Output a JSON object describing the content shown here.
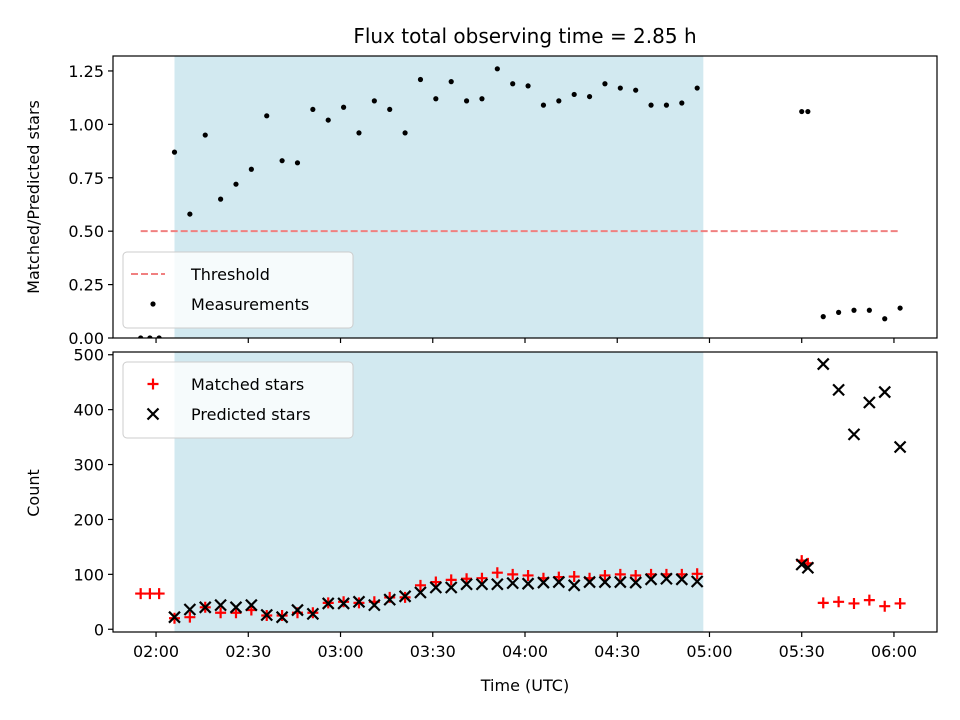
{
  "chart_data": [
    {
      "type": "scatter",
      "title": "Flux total observing time = 2.85 h",
      "xlabel": "",
      "ylabel": "Matched/Predicted stars",
      "x_tick_labels": [
        "02:00",
        "02:30",
        "03:00",
        "03:30",
        "04:00",
        "04:30",
        "05:00",
        "05:30",
        "06:00"
      ],
      "y_ticks": [
        0.0,
        0.25,
        0.5,
        0.75,
        1.0,
        1.25
      ],
      "y_tick_labels": [
        "0.00",
        "0.25",
        "0.50",
        "0.75",
        "1.00",
        "1.25"
      ],
      "xlim": [
        "01:46",
        "06:14"
      ],
      "ylim": [
        0,
        1.32
      ],
      "shaded_region": {
        "x": [
          "02:06",
          "04:58"
        ],
        "color": "#d2e9f0"
      },
      "threshold": {
        "name": "Threshold",
        "value": 0.5,
        "x": [
          "01:55",
          "06:02"
        ],
        "color": "#f08080",
        "style": "dashed"
      },
      "series": [
        {
          "name": "Measurements",
          "marker": "dot",
          "color": "#000000",
          "points": [
            [
              "01:55",
              0.0
            ],
            [
              "01:58",
              0.0
            ],
            [
              "02:01",
              0.0
            ],
            [
              "02:06",
              0.87
            ],
            [
              "02:11",
              0.58
            ],
            [
              "02:16",
              0.95
            ],
            [
              "02:21",
              0.65
            ],
            [
              "02:26",
              0.72
            ],
            [
              "02:31",
              0.79
            ],
            [
              "02:36",
              1.04
            ],
            [
              "02:41",
              0.83
            ],
            [
              "02:46",
              0.82
            ],
            [
              "02:51",
              1.07
            ],
            [
              "02:56",
              1.02
            ],
            [
              "03:01",
              1.08
            ],
            [
              "03:06",
              0.96
            ],
            [
              "03:11",
              1.11
            ],
            [
              "03:16",
              1.07
            ],
            [
              "03:21",
              0.96
            ],
            [
              "03:26",
              1.21
            ],
            [
              "03:31",
              1.12
            ],
            [
              "03:36",
              1.2
            ],
            [
              "03:41",
              1.11
            ],
            [
              "03:46",
              1.12
            ],
            [
              "03:51",
              1.26
            ],
            [
              "03:56",
              1.19
            ],
            [
              "04:01",
              1.18
            ],
            [
              "04:06",
              1.09
            ],
            [
              "04:11",
              1.11
            ],
            [
              "04:16",
              1.14
            ],
            [
              "04:21",
              1.13
            ],
            [
              "04:26",
              1.19
            ],
            [
              "04:31",
              1.17
            ],
            [
              "04:36",
              1.16
            ],
            [
              "04:41",
              1.09
            ],
            [
              "04:46",
              1.09
            ],
            [
              "04:51",
              1.1
            ],
            [
              "04:56",
              1.17
            ],
            [
              "05:30",
              1.06
            ],
            [
              "05:32",
              1.06
            ],
            [
              "05:37",
              0.1
            ],
            [
              "05:42",
              0.12
            ],
            [
              "05:47",
              0.13
            ],
            [
              "05:52",
              0.13
            ],
            [
              "05:57",
              0.09
            ],
            [
              "06:02",
              0.14
            ]
          ]
        }
      ],
      "legend": {
        "position": "lower-left",
        "entries": [
          "Threshold",
          "Measurements"
        ]
      }
    },
    {
      "type": "scatter",
      "title": "",
      "xlabel": "Time (UTC)",
      "ylabel": "Count",
      "x_tick_labels": [
        "02:00",
        "02:30",
        "03:00",
        "03:30",
        "04:00",
        "04:30",
        "05:00",
        "05:30",
        "06:00"
      ],
      "y_ticks": [
        0,
        100,
        200,
        300,
        400,
        500
      ],
      "y_tick_labels": [
        "0",
        "100",
        "200",
        "300",
        "400",
        "500"
      ],
      "xlim": [
        "01:46",
        "06:14"
      ],
      "ylim": [
        -5,
        505
      ],
      "shaded_region": {
        "x": [
          "02:06",
          "04:58"
        ],
        "color": "#d2e9f0"
      },
      "series": [
        {
          "name": "Matched stars",
          "marker": "plus",
          "color": "#ff0000",
          "points": [
            [
              "01:55",
              65
            ],
            [
              "01:58",
              65
            ],
            [
              "02:01",
              65
            ],
            [
              "02:06",
              20
            ],
            [
              "02:11",
              22
            ],
            [
              "02:16",
              40
            ],
            [
              "02:21",
              30
            ],
            [
              "02:26",
              30
            ],
            [
              "02:31",
              35
            ],
            [
              "02:36",
              25
            ],
            [
              "02:41",
              25
            ],
            [
              "02:46",
              30
            ],
            [
              "02:51",
              30
            ],
            [
              "02:56",
              48
            ],
            [
              "03:01",
              50
            ],
            [
              "03:06",
              48
            ],
            [
              "03:11",
              50
            ],
            [
              "03:16",
              58
            ],
            [
              "03:21",
              58
            ],
            [
              "03:26",
              80
            ],
            [
              "03:31",
              86
            ],
            [
              "03:36",
              90
            ],
            [
              "03:41",
              92
            ],
            [
              "03:46",
              93
            ],
            [
              "03:51",
              103
            ],
            [
              "03:56",
              100
            ],
            [
              "04:01",
              98
            ],
            [
              "04:06",
              93
            ],
            [
              "04:11",
              95
            ],
            [
              "04:16",
              96
            ],
            [
              "04:21",
              93
            ],
            [
              "04:26",
              98
            ],
            [
              "04:31",
              100
            ],
            [
              "04:36",
              98
            ],
            [
              "04:41",
              100
            ],
            [
              "04:46",
              100
            ],
            [
              "04:51",
              100
            ],
            [
              "04:56",
              101
            ],
            [
              "05:30",
              125
            ],
            [
              "05:32",
              120
            ],
            [
              "05:37",
              48
            ],
            [
              "05:42",
              50
            ],
            [
              "05:47",
              47
            ],
            [
              "05:52",
              53
            ],
            [
              "05:57",
              42
            ],
            [
              "06:02",
              47
            ]
          ]
        },
        {
          "name": "Predicted stars",
          "marker": "x",
          "color": "#000000",
          "points": [
            [
              "02:06",
              22
            ],
            [
              "02:11",
              36
            ],
            [
              "02:16",
              40
            ],
            [
              "02:21",
              44
            ],
            [
              "02:26",
              40
            ],
            [
              "02:31",
              44
            ],
            [
              "02:36",
              26
            ],
            [
              "02:41",
              22
            ],
            [
              "02:46",
              35
            ],
            [
              "02:51",
              28
            ],
            [
              "02:56",
              47
            ],
            [
              "03:01",
              47
            ],
            [
              "03:06",
              50
            ],
            [
              "03:11",
              44
            ],
            [
              "03:16",
              54
            ],
            [
              "03:21",
              60
            ],
            [
              "03:26",
              67
            ],
            [
              "03:31",
              76
            ],
            [
              "03:36",
              76
            ],
            [
              "03:41",
              82
            ],
            [
              "03:46",
              82
            ],
            [
              "03:51",
              82
            ],
            [
              "03:56",
              84
            ],
            [
              "04:01",
              83
            ],
            [
              "04:06",
              85
            ],
            [
              "04:11",
              86
            ],
            [
              "04:16",
              80
            ],
            [
              "04:21",
              86
            ],
            [
              "04:26",
              86
            ],
            [
              "04:31",
              86
            ],
            [
              "04:36",
              85
            ],
            [
              "04:41",
              91
            ],
            [
              "04:46",
              92
            ],
            [
              "04:51",
              91
            ],
            [
              "04:56",
              87
            ],
            [
              "05:30",
              118
            ],
            [
              "05:32",
              112
            ],
            [
              "05:37",
              483
            ],
            [
              "05:42",
              436
            ],
            [
              "05:47",
              355
            ],
            [
              "05:52",
              413
            ],
            [
              "05:57",
              432
            ],
            [
              "06:02",
              332
            ]
          ]
        }
      ],
      "legend": {
        "position": "upper-left",
        "entries": [
          "Matched stars",
          "Predicted stars"
        ]
      }
    }
  ]
}
